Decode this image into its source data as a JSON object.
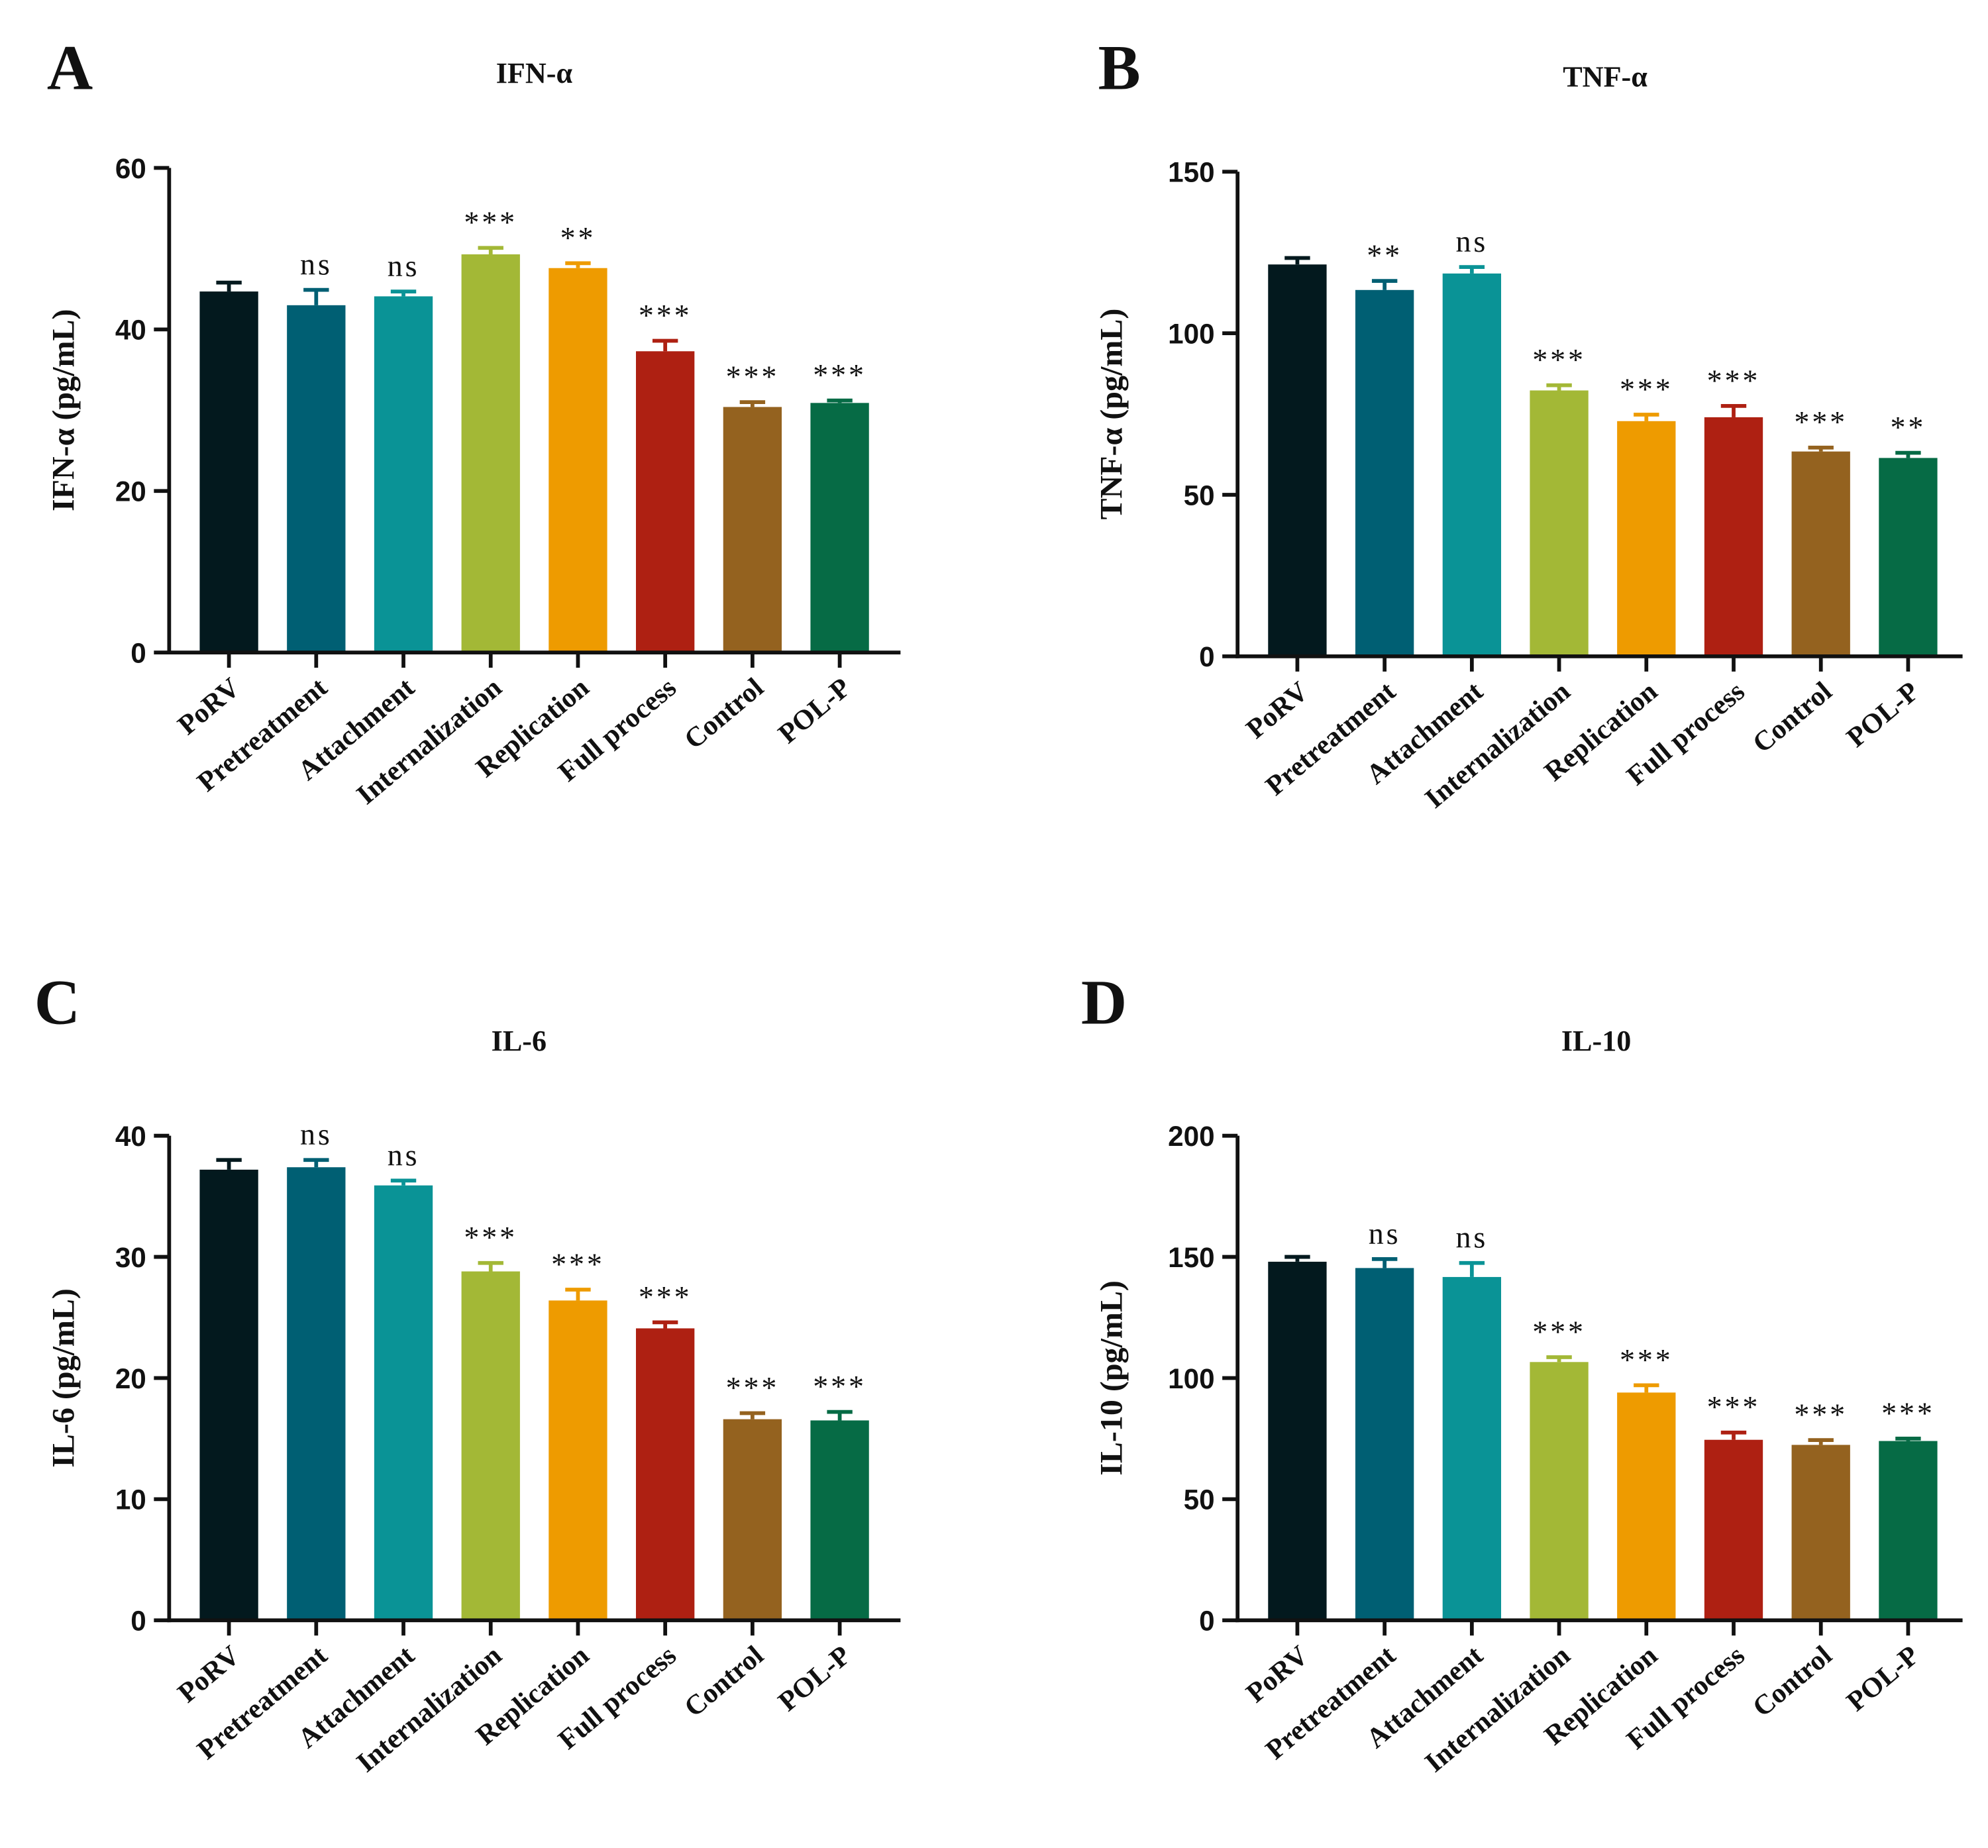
{
  "chart_data": [
    {
      "type": "bar",
      "panel": "A",
      "title": "IFN-α",
      "y_label": "IFN-α (pg/mL)",
      "categories": [
        "PoRV",
        "Pretreatment",
        "Attachment",
        "Internalization",
        "Replication",
        "Full process",
        "Control",
        "POL-P"
      ],
      "colors": [
        "#03191e",
        "#005f73",
        "#0a9396",
        "#a3b836",
        "#ee9b00",
        "#ae2012",
        "#94621f",
        "#066b45"
      ],
      "values": [
        44.7,
        43.0,
        44.1,
        49.3,
        47.6,
        37.3,
        30.4,
        30.9
      ],
      "errors": [
        1.1,
        1.9,
        0.6,
        0.8,
        0.6,
        1.3,
        0.6,
        0.3
      ],
      "annotations": [
        null,
        "ns",
        "ns",
        "***",
        "**",
        "***",
        "***",
        "***"
      ],
      "ylim": [
        0,
        60
      ],
      "yticks": [
        0,
        20,
        40,
        60
      ]
    },
    {
      "type": "bar",
      "panel": "B",
      "title": "TNF-α",
      "y_label": "TNF-α (pg/mL)",
      "categories": [
        "PoRV",
        "Pretreatment",
        "Attachment",
        "Internalization",
        "Replication",
        "Full process",
        "Control",
        "POL-P"
      ],
      "colors": [
        "#03191e",
        "#005f73",
        "#0a9396",
        "#a3b836",
        "#ee9b00",
        "#ae2012",
        "#94621f",
        "#066b45"
      ],
      "values": [
        121.3,
        113.4,
        118.5,
        82.3,
        72.8,
        74.0,
        63.4,
        61.4
      ],
      "errors": [
        2.0,
        2.8,
        2.0,
        1.6,
        2.0,
        3.5,
        1.2,
        1.6
      ],
      "annotations": [
        null,
        "**",
        "ns",
        "***",
        "***",
        "***",
        "***",
        "**"
      ],
      "ylim": [
        0,
        150
      ],
      "yticks": [
        0,
        50,
        100,
        150
      ]
    },
    {
      "type": "bar",
      "panel": "C",
      "title": "IL-6",
      "y_label": "IL-6 (pg/mL)",
      "categories": [
        "PoRV",
        "Pretreatment",
        "Attachment",
        "Internalization",
        "Replication",
        "Full process",
        "Control",
        "POL-P"
      ],
      "colors": [
        "#03191e",
        "#005f73",
        "#0a9396",
        "#a3b836",
        "#ee9b00",
        "#ae2012",
        "#94621f",
        "#066b45"
      ],
      "values": [
        37.2,
        37.4,
        35.9,
        28.8,
        26.4,
        24.1,
        16.6,
        16.5
      ],
      "errors": [
        0.8,
        0.6,
        0.4,
        0.7,
        0.9,
        0.5,
        0.5,
        0.7
      ],
      "annotations": [
        null,
        "ns",
        "ns",
        "***",
        "***",
        "***",
        "***",
        "***"
      ],
      "ylim": [
        0,
        40
      ],
      "yticks": [
        0,
        10,
        20,
        30,
        40
      ]
    },
    {
      "type": "bar",
      "panel": "D",
      "title": "IL-10",
      "y_label": "IL-10 (pg/mL)",
      "categories": [
        "PoRV",
        "Pretreatment",
        "Attachment",
        "Internalization",
        "Replication",
        "Full process",
        "Control",
        "POL-P"
      ],
      "colors": [
        "#03191e",
        "#005f73",
        "#0a9396",
        "#a3b836",
        "#ee9b00",
        "#ae2012",
        "#94621f",
        "#066b45"
      ],
      "values": [
        148.0,
        145.4,
        141.7,
        106.6,
        94.0,
        74.5,
        72.4,
        74.0
      ],
      "errors": [
        2.0,
        3.7,
        5.8,
        2.0,
        3.0,
        3.0,
        2.0,
        1.0
      ],
      "annotations": [
        null,
        "ns",
        "ns",
        "***",
        "***",
        "***",
        "***",
        "***"
      ],
      "ylim": [
        0,
        200
      ],
      "yticks": [
        0,
        50,
        100,
        150,
        200
      ]
    }
  ]
}
